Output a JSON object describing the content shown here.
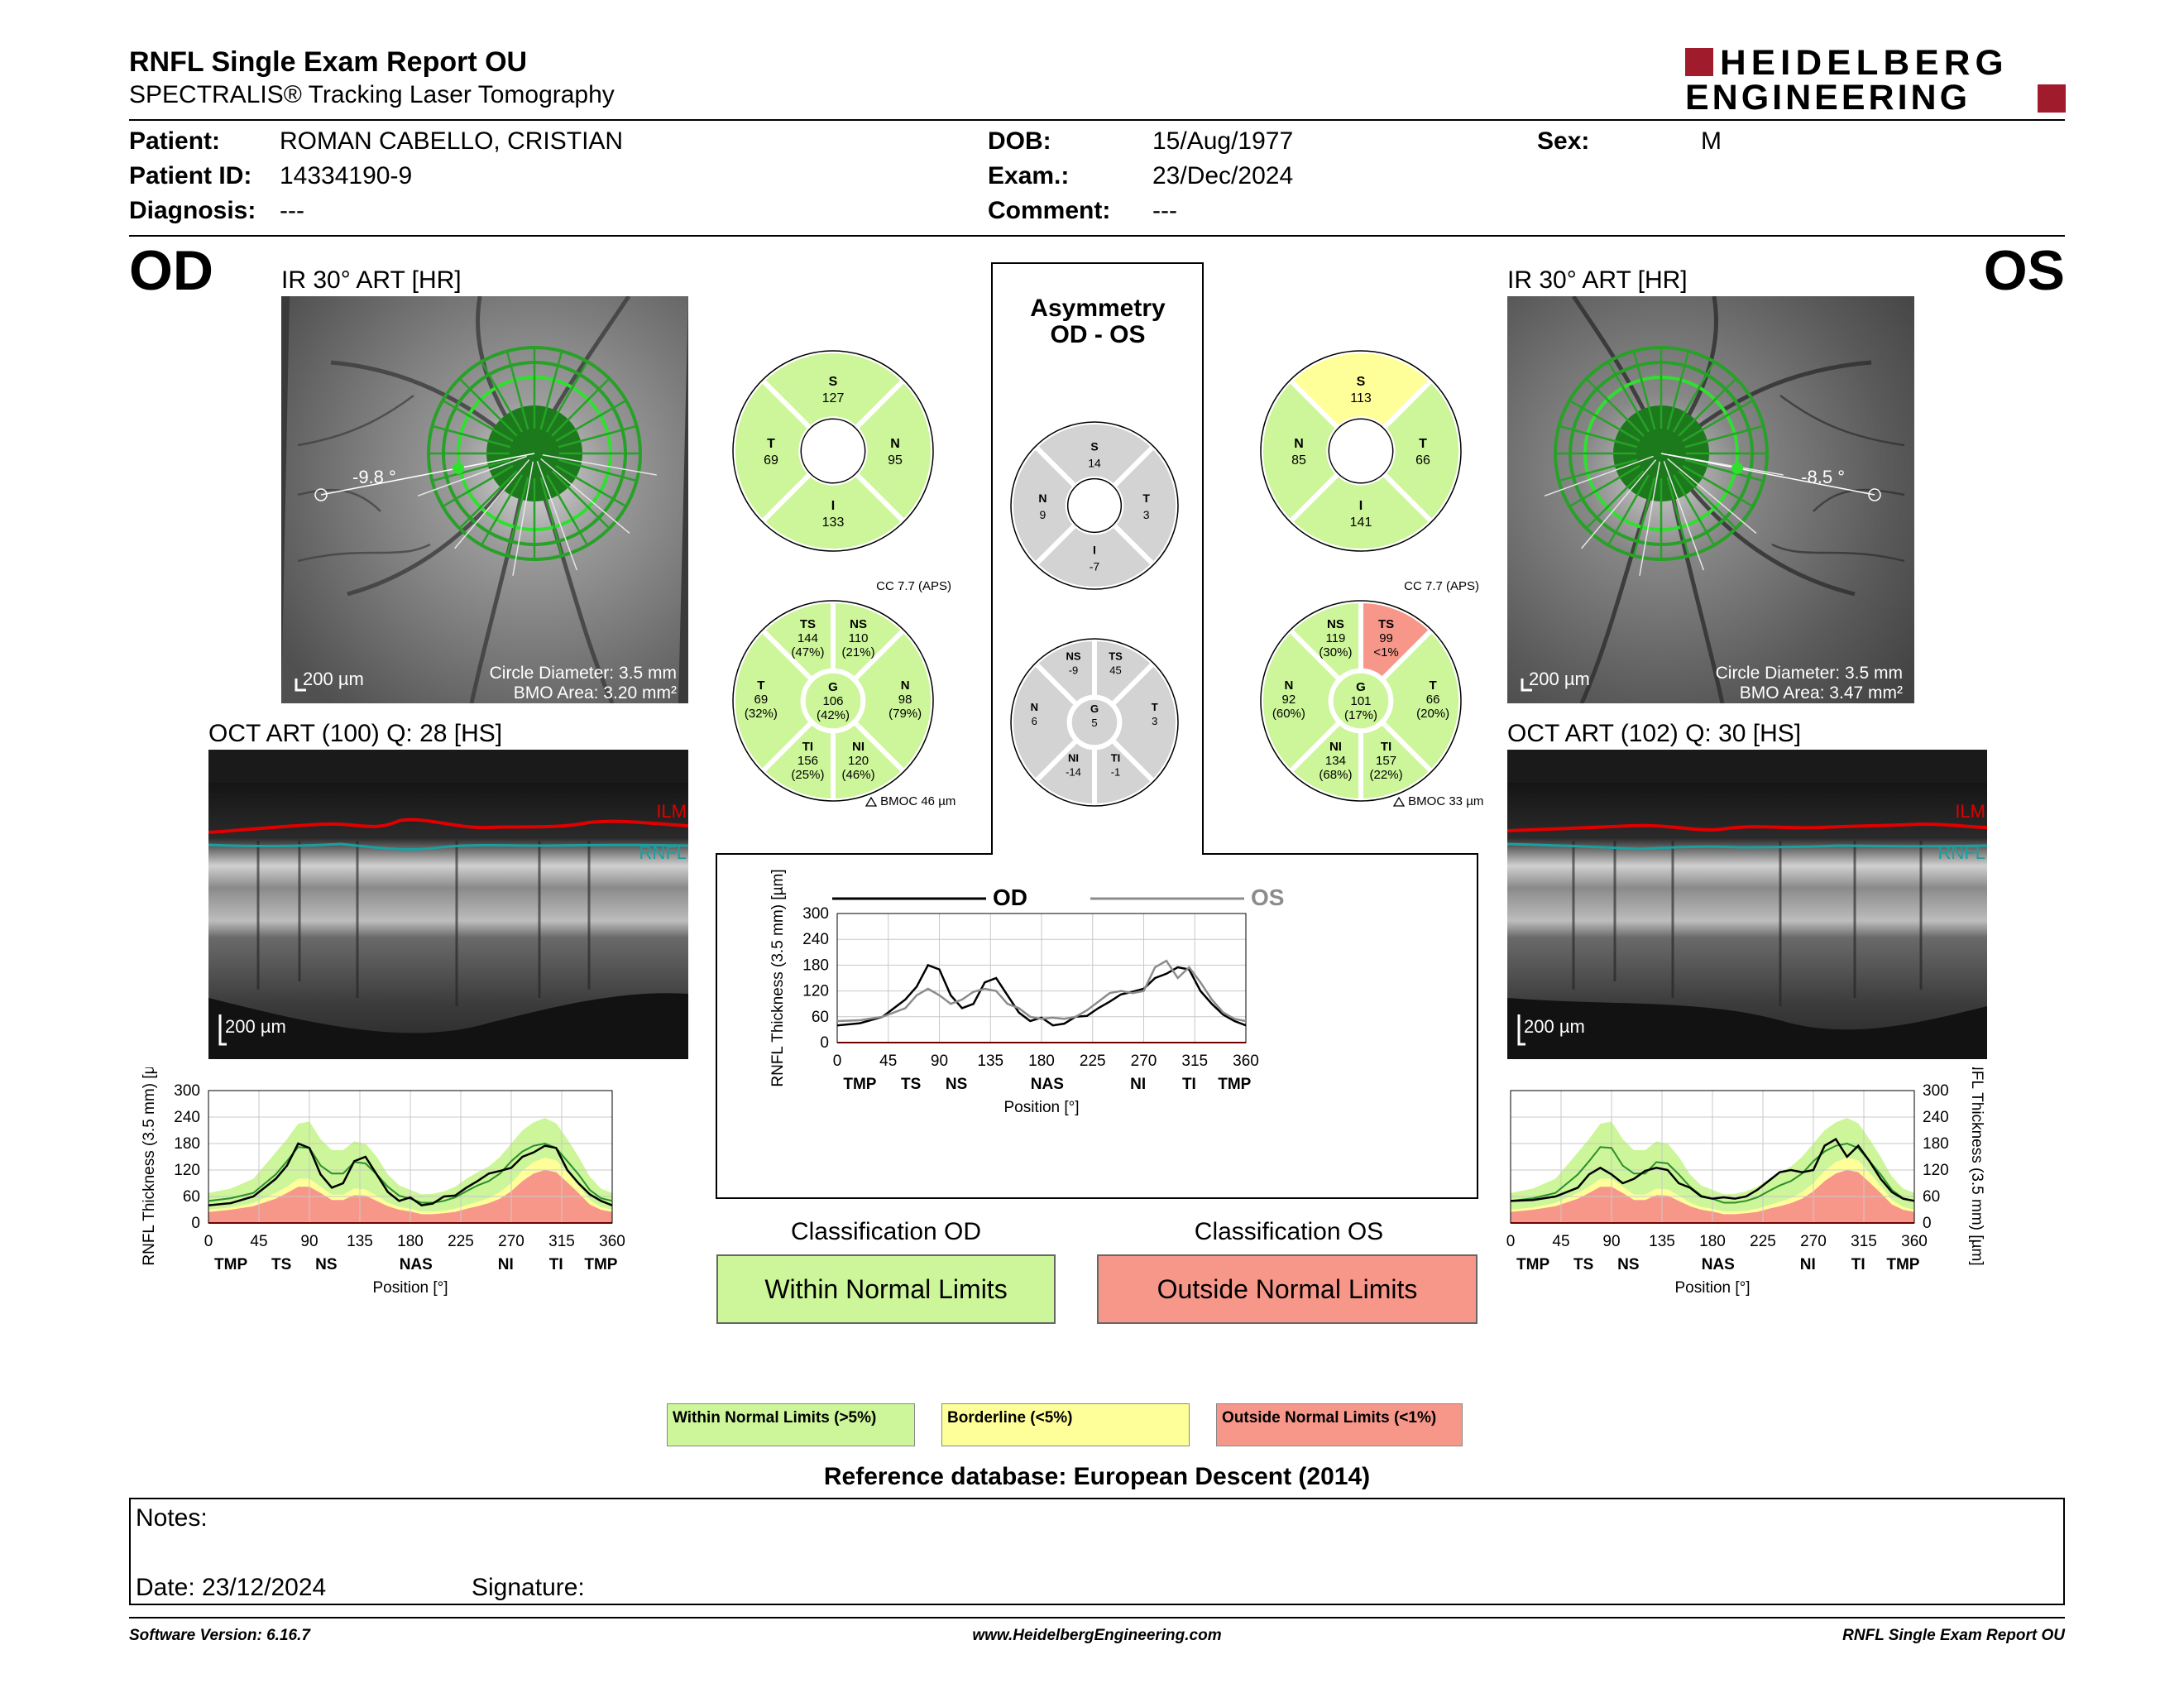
{
  "header": {
    "title": "RNFL Single Exam Report OU",
    "subtitle": "SPECTRALIS® Tracking Laser Tomography",
    "logo_line1": "HEIDELBERG",
    "logo_line2": "ENGINEERING",
    "logo_color": "#a01c2c"
  },
  "patient": {
    "patient_label": "Patient:",
    "patient_value": "ROMAN CABELLO, CRISTIAN",
    "id_label": "Patient ID:",
    "id_value": "14334190-9",
    "diagnosis_label": "Diagnosis:",
    "diagnosis_value": "---",
    "dob_label": "DOB:",
    "dob_value": "15/Aug/1977",
    "exam_label": "Exam.:",
    "exam_value": "23/Dec/2024",
    "comment_label": "Comment:",
    "comment_value": "---",
    "sex_label": "Sex:",
    "sex_value": "M"
  },
  "od": {
    "eye_label": "OD",
    "ir_title": "IR 30° ART [HR]",
    "angle": "-9.8 °",
    "scale": "200 µm",
    "circle_diameter": "Circle Diameter: 3.5 mm",
    "bmo_area": "BMO Area: 3.20 mm²",
    "oct_title": "OCT ART (100) Q: 28 [HS]",
    "oct_scale": "200 µm",
    "ilm": "ILM",
    "rnfl": "RNFL",
    "quad": [
      {
        "label": "S",
        "value": "127",
        "fill": "#ccf699"
      },
      {
        "label": "N",
        "value": "95",
        "fill": "#ccf699"
      },
      {
        "label": "I",
        "value": "133",
        "fill": "#ccf699"
      },
      {
        "label": "T",
        "value": "69",
        "fill": "#ccf699"
      }
    ],
    "cc": "CC 7.7 (APS)",
    "bmoc": "BMOC 46 µm",
    "sect": {
      "G": {
        "label": "G",
        "value": "106",
        "pct": "(42%)",
        "fill": "#ccf699"
      },
      "sectors": [
        {
          "label": "NS",
          "value": "110",
          "pct": "(21%)",
          "fill": "#ccf699"
        },
        {
          "label": "N",
          "value": "98",
          "pct": "(79%)",
          "fill": "#ccf699"
        },
        {
          "label": "NI",
          "value": "120",
          "pct": "(46%)",
          "fill": "#ccf699"
        },
        {
          "label": "TI",
          "value": "156",
          "pct": "(25%)",
          "fill": "#ccf699"
        },
        {
          "label": "T",
          "value": "69",
          "pct": "(32%)",
          "fill": "#ccf699"
        },
        {
          "label": "TS",
          "value": "144",
          "pct": "(47%)",
          "fill": "#ccf699"
        }
      ]
    },
    "classification_title": "Classification OD",
    "classification": "Within Normal Limits",
    "classification_color": "#ccf699"
  },
  "os": {
    "eye_label": "OS",
    "ir_title": "IR 30° ART [HR]",
    "angle": "-8.5 °",
    "scale": "200 µm",
    "circle_diameter": "Circle Diameter: 3.5 mm",
    "bmo_area": "BMO Area: 3.47 mm²",
    "oct_title": "OCT ART (102) Q: 30 [HS]",
    "oct_scale": "200 µm",
    "ilm": "ILM",
    "rnfl": "RNFL",
    "quad": [
      {
        "label": "S",
        "value": "113",
        "fill": "#ffff99"
      },
      {
        "label": "T",
        "value": "66",
        "fill": "#ccf699"
      },
      {
        "label": "I",
        "value": "141",
        "fill": "#ccf699"
      },
      {
        "label": "N",
        "value": "85",
        "fill": "#ccf699"
      }
    ],
    "cc": "CC 7.7 (APS)",
    "bmoc": "BMOC 33 µm",
    "sect": {
      "G": {
        "label": "G",
        "value": "101",
        "pct": "(17%)",
        "fill": "#ccf699"
      },
      "sectors": [
        {
          "label": "TS",
          "value": "99",
          "pct": "<1%",
          "fill": "#f7978a"
        },
        {
          "label": "T",
          "value": "66",
          "pct": "(20%)",
          "fill": "#ccf699"
        },
        {
          "label": "TI",
          "value": "157",
          "pct": "(22%)",
          "fill": "#ccf699"
        },
        {
          "label": "NI",
          "value": "134",
          "pct": "(68%)",
          "fill": "#ccf699"
        },
        {
          "label": "N",
          "value": "92",
          "pct": "(60%)",
          "fill": "#ccf699"
        },
        {
          "label": "NS",
          "value": "119",
          "pct": "(30%)",
          "fill": "#ccf699"
        }
      ]
    },
    "classification_title": "Classification OS",
    "classification": "Outside Normal Limits",
    "classification_color": "#f7978a"
  },
  "asym": {
    "title1": "Asymmetry",
    "title2": "OD - OS",
    "quad": [
      {
        "label": "S",
        "value": "14"
      },
      {
        "label": "T",
        "value": "3"
      },
      {
        "label": "I",
        "value": "-7"
      },
      {
        "label": "N",
        "value": "9"
      }
    ],
    "G": {
      "label": "G",
      "value": "5"
    },
    "sectors": [
      {
        "label": "TS",
        "value": "45"
      },
      {
        "label": "T",
        "value": "3"
      },
      {
        "label": "TI",
        "value": "-1"
      },
      {
        "label": "NI",
        "value": "-14"
      },
      {
        "label": "N",
        "value": "6"
      },
      {
        "label": "NS",
        "value": "-9"
      }
    ],
    "fill": "#d3d3d3"
  },
  "legend": {
    "wnl": "Within Normal Limits (>5%)",
    "bl": "Borderline (<5%)",
    "onl": "Outside Normal Limits (<1%)",
    "wnl_color": "#ccf699",
    "bl_color": "#ffff99",
    "onl_color": "#f7978a"
  },
  "reference": "Reference database: European Descent (2014)",
  "notes": {
    "notes_label": "Notes:",
    "date_label": "Date: 23/12/2024",
    "signature_label": "Signature:"
  },
  "footer": {
    "left": "Software Version: 6.16.7",
    "center": "www.HeidelbergEngineering.com",
    "right": "RNFL Single Exam Report OU"
  },
  "chart_data": [
    {
      "id": "od",
      "type": "line",
      "ylabel": "RNFL Thickness (3.5 mm) [µm]",
      "xlabel": "Position [°]",
      "ylim": [
        0,
        300
      ],
      "xlim": [
        0,
        360
      ],
      "yticks": [
        0,
        60,
        120,
        180,
        240,
        300
      ],
      "xticks": [
        0,
        45,
        90,
        135,
        180,
        225,
        270,
        315,
        360
      ],
      "sector_labels": [
        "TMP",
        "TS",
        "NS",
        "NAS",
        "NI",
        "TI",
        "TMP"
      ],
      "sector_pos": [
        20,
        65,
        105,
        185,
        265,
        310,
        350
      ],
      "grid": true,
      "x": [
        0,
        20,
        40,
        60,
        70,
        80,
        90,
        100,
        110,
        120,
        130,
        140,
        150,
        160,
        170,
        180,
        190,
        200,
        210,
        220,
        230,
        240,
        250,
        260,
        270,
        280,
        290,
        300,
        310,
        320,
        330,
        340,
        350,
        360
      ],
      "p1": [
        25,
        30,
        38,
        55,
        68,
        82,
        82,
        68,
        52,
        52,
        63,
        62,
        50,
        38,
        30,
        26,
        20,
        20,
        22,
        25,
        32,
        38,
        45,
        55,
        72,
        95,
        112,
        120,
        115,
        92,
        68,
        42,
        30,
        25
      ],
      "p5": [
        30,
        35,
        45,
        68,
        82,
        100,
        100,
        82,
        64,
        64,
        78,
        76,
        62,
        46,
        36,
        32,
        26,
        26,
        28,
        32,
        40,
        48,
        56,
        70,
        90,
        118,
        138,
        148,
        142,
        114,
        84,
        52,
        36,
        30
      ],
      "p95": [
        68,
        78,
        100,
        160,
        190,
        225,
        230,
        190,
        165,
        165,
        185,
        180,
        150,
        110,
        85,
        75,
        65,
        66,
        72,
        82,
        100,
        115,
        128,
        150,
        180,
        210,
        228,
        238,
        226,
        190,
        150,
        105,
        78,
        68
      ],
      "normal": [
        50,
        56,
        68,
        110,
        140,
        172,
        170,
        130,
        112,
        112,
        138,
        135,
        110,
        82,
        62,
        55,
        46,
        46,
        50,
        58,
        72,
        85,
        95,
        112,
        140,
        162,
        175,
        180,
        170,
        140,
        110,
        75,
        56,
        50
      ],
      "series": [
        {
          "values": [
            40,
            45,
            60,
            100,
            130,
            180,
            170,
            110,
            80,
            90,
            140,
            150,
            110,
            70,
            50,
            58,
            40,
            44,
            60,
            62,
            80,
            95,
            112,
            118,
            125,
            150,
            160,
            175,
            170,
            120,
            90,
            65,
            50,
            40
          ]
        }
      ]
    },
    {
      "id": "os",
      "type": "line",
      "ylabel": "RNFL Thickness (3.5 mm) [µm]",
      "xlabel": "Position [°]",
      "ylim": [
        0,
        300
      ],
      "xlim": [
        0,
        360
      ],
      "yticks": [
        0,
        60,
        120,
        180,
        240,
        300
      ],
      "xticks": [
        0,
        45,
        90,
        135,
        180,
        225,
        270,
        315,
        360
      ],
      "sector_labels": [
        "TMP",
        "TS",
        "NS",
        "NAS",
        "NI",
        "TI",
        "TMP"
      ],
      "sector_pos": [
        20,
        65,
        105,
        185,
        265,
        310,
        350
      ],
      "grid": true,
      "x": [
        0,
        20,
        40,
        60,
        70,
        80,
        90,
        100,
        110,
        120,
        130,
        140,
        150,
        160,
        170,
        180,
        190,
        200,
        210,
        220,
        230,
        240,
        250,
        260,
        270,
        280,
        290,
        300,
        310,
        320,
        330,
        340,
        350,
        360
      ],
      "p1": [
        25,
        30,
        38,
        55,
        68,
        82,
        82,
        68,
        52,
        52,
        63,
        62,
        50,
        38,
        30,
        26,
        20,
        20,
        22,
        25,
        32,
        38,
        45,
        55,
        72,
        95,
        112,
        120,
        115,
        92,
        68,
        42,
        30,
        25
      ],
      "p5": [
        30,
        35,
        45,
        68,
        82,
        100,
        100,
        82,
        64,
        64,
        78,
        76,
        62,
        46,
        36,
        32,
        26,
        26,
        28,
        32,
        40,
        48,
        56,
        70,
        90,
        118,
        138,
        148,
        142,
        114,
        84,
        52,
        36,
        30
      ],
      "p95": [
        68,
        78,
        100,
        160,
        190,
        225,
        230,
        190,
        165,
        165,
        185,
        180,
        150,
        110,
        85,
        75,
        65,
        66,
        72,
        82,
        100,
        115,
        128,
        150,
        180,
        210,
        228,
        238,
        226,
        190,
        150,
        105,
        78,
        68
      ],
      "normal": [
        50,
        56,
        68,
        110,
        140,
        172,
        170,
        130,
        112,
        112,
        138,
        135,
        110,
        82,
        62,
        55,
        46,
        46,
        50,
        58,
        72,
        85,
        95,
        112,
        140,
        162,
        175,
        180,
        170,
        140,
        110,
        75,
        56,
        50
      ],
      "series": [
        {
          "values": [
            50,
            52,
            60,
            80,
            110,
            125,
            110,
            90,
            100,
            118,
            125,
            120,
            90,
            80,
            60,
            55,
            58,
            55,
            60,
            75,
            95,
            115,
            120,
            115,
            120,
            175,
            190,
            150,
            175,
            140,
            100,
            70,
            55,
            50
          ]
        }
      ]
    },
    {
      "id": "ou",
      "type": "line",
      "ylabel": "RNFL Thickness (3.5 mm) [µm]",
      "xlabel": "Position [°]",
      "ylim": [
        0,
        300
      ],
      "xlim": [
        0,
        360
      ],
      "yticks": [
        0,
        60,
        120,
        180,
        240,
        300
      ],
      "xticks": [
        0,
        45,
        90,
        135,
        180,
        225,
        270,
        315,
        360
      ],
      "sector_labels": [
        "TMP",
        "TS",
        "NS",
        "NAS",
        "NI",
        "TI",
        "TMP"
      ],
      "sector_pos": [
        20,
        65,
        105,
        185,
        265,
        310,
        350
      ],
      "grid": true,
      "x": [
        0,
        20,
        40,
        60,
        70,
        80,
        90,
        100,
        110,
        120,
        130,
        140,
        150,
        160,
        170,
        180,
        190,
        200,
        210,
        220,
        230,
        240,
        250,
        260,
        270,
        280,
        290,
        300,
        310,
        320,
        330,
        340,
        350,
        360
      ],
      "series": [
        {
          "name": "OD",
          "color": "#000000",
          "values": [
            40,
            45,
            60,
            100,
            130,
            180,
            170,
            110,
            80,
            90,
            140,
            150,
            110,
            70,
            50,
            58,
            40,
            44,
            60,
            62,
            80,
            95,
            112,
            118,
            125,
            150,
            160,
            175,
            170,
            120,
            90,
            65,
            50,
            40
          ]
        },
        {
          "name": "OS",
          "color": "#8c8c8c",
          "values": [
            50,
            52,
            60,
            80,
            110,
            125,
            110,
            90,
            100,
            118,
            125,
            120,
            90,
            80,
            60,
            55,
            58,
            55,
            60,
            75,
            95,
            115,
            120,
            115,
            120,
            175,
            190,
            150,
            175,
            140,
            100,
            70,
            55,
            50
          ]
        }
      ]
    }
  ]
}
